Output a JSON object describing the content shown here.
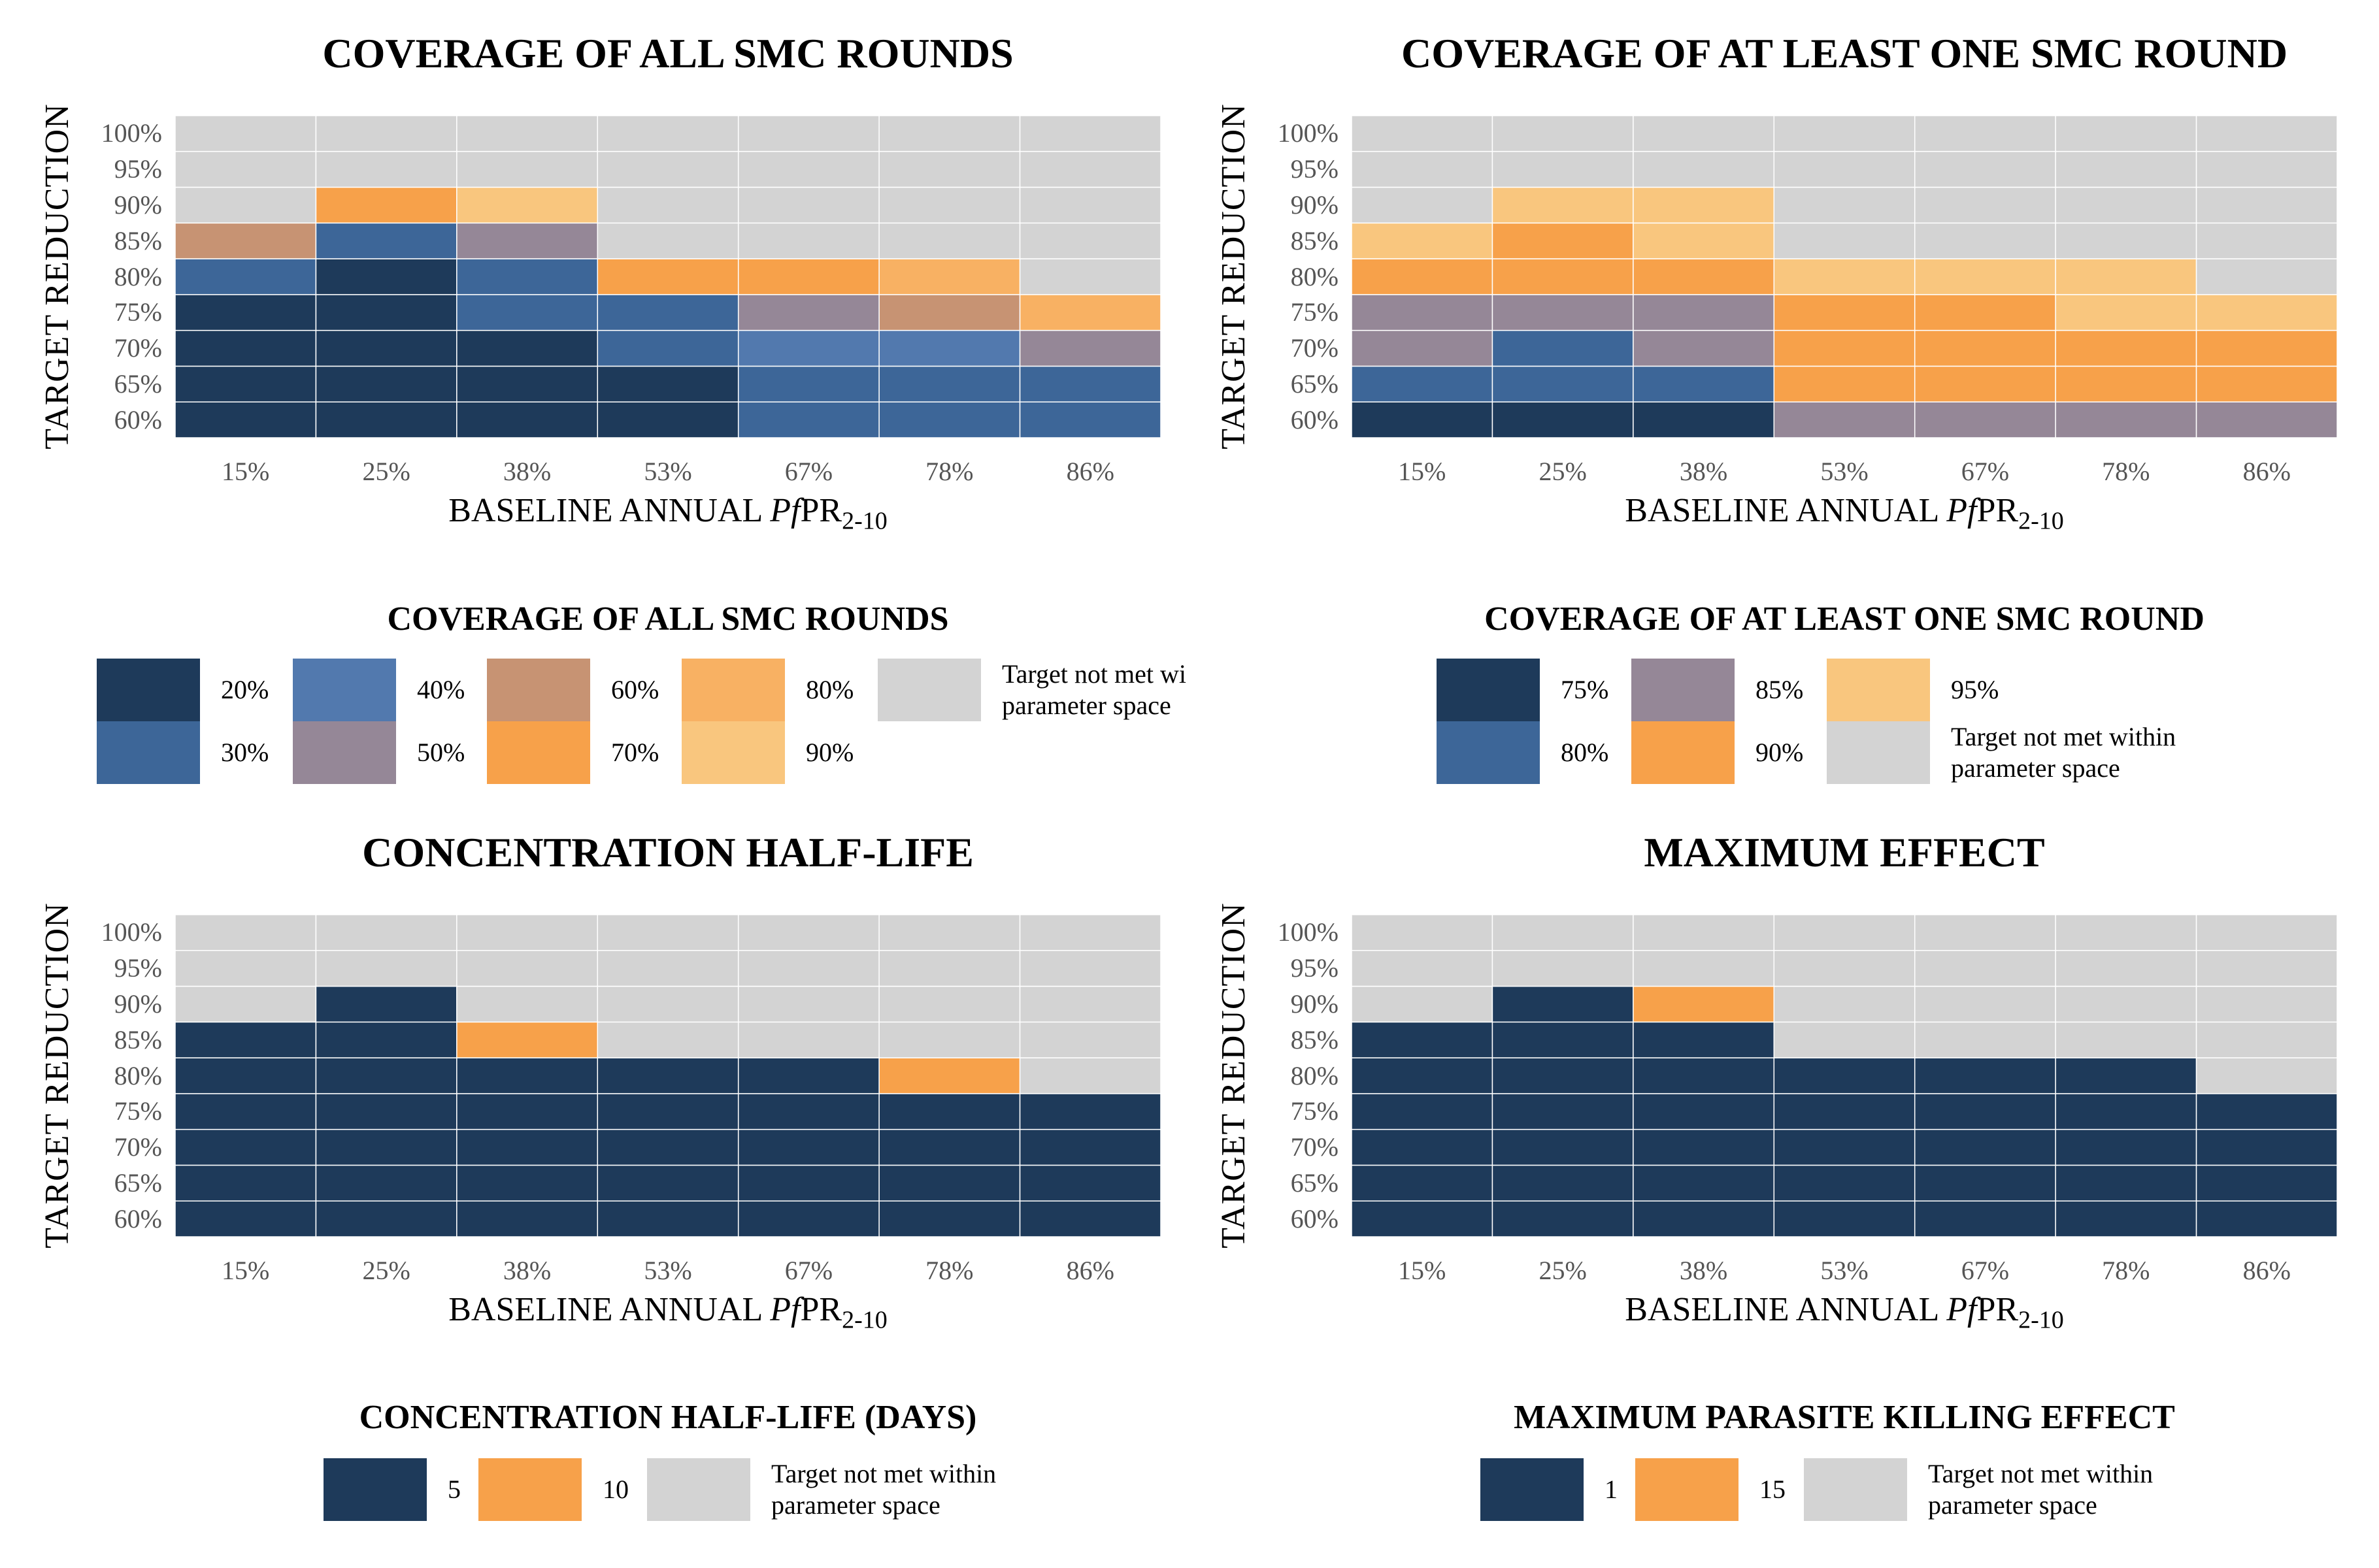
{
  "colors": {
    "c20": "#1e3a5a",
    "c30": "#3d6698",
    "c40": "#5279ae",
    "c50": "#958797",
    "c60": "#c79373",
    "c70": "#f7a14a",
    "c80": "#f8b163",
    "c90": "#f9c67e",
    "grey": "#d3d3d3"
  },
  "chart_data": [
    {
      "type": "heatmap",
      "title": "COVERAGE OF ALL SMC ROUNDS",
      "xlabel_main": "BASELINE ANNUAL ",
      "xlabel_italic": "Pf",
      "xlabel_rest": "PR",
      "xlabel_sub": "2-10",
      "ylabel": "TARGET  REDUCTION",
      "x_categories": [
        "15%",
        "25%",
        "38%",
        "53%",
        "67%",
        "78%",
        "86%"
      ],
      "y_categories": [
        "60%",
        "65%",
        "70%",
        "75%",
        "80%",
        "85%",
        "90%",
        "95%",
        "100%"
      ],
      "cells": [
        [
          "20%",
          "20%",
          "20%",
          "20%",
          "30%",
          "30%",
          "30%"
        ],
        [
          "20%",
          "20%",
          "20%",
          "20%",
          "30%",
          "30%",
          "30%"
        ],
        [
          "20%",
          "20%",
          "20%",
          "30%",
          "40%",
          "40%",
          "50%"
        ],
        [
          "20%",
          "20%",
          "30%",
          "30%",
          "50%",
          "60%",
          "80%"
        ],
        [
          "30%",
          "20%",
          "30%",
          "70%",
          "70%",
          "80%",
          "NM"
        ],
        [
          "60%",
          "30%",
          "50%",
          "NM",
          "NM",
          "NM",
          "NM"
        ],
        [
          "NM",
          "70%",
          "90%",
          "NM",
          "NM",
          "NM",
          "NM"
        ],
        [
          "NM",
          "NM",
          "NM",
          "NM",
          "NM",
          "NM",
          "NM"
        ],
        [
          "NM",
          "NM",
          "NM",
          "NM",
          "NM",
          "NM",
          "NM"
        ]
      ]
    },
    {
      "type": "heatmap",
      "title": "COVERAGE OF AT LEAST ONE SMC ROUND",
      "xlabel_main": "BASELINE ANNUAL ",
      "xlabel_italic": "Pf",
      "xlabel_rest": "PR",
      "xlabel_sub": "2-10",
      "ylabel": "TARGET  REDUCTION",
      "x_categories": [
        "15%",
        "25%",
        "38%",
        "53%",
        "67%",
        "78%",
        "86%"
      ],
      "y_categories": [
        "60%",
        "65%",
        "70%",
        "75%",
        "80%",
        "85%",
        "90%",
        "95%",
        "100%"
      ],
      "cells": [
        [
          "75%",
          "75%",
          "75%",
          "85%",
          "85%",
          "85%",
          "85%"
        ],
        [
          "80%",
          "80%",
          "80%",
          "90%",
          "90%",
          "90%",
          "90%"
        ],
        [
          "85%",
          "80%",
          "85%",
          "90%",
          "90%",
          "90%",
          "90%"
        ],
        [
          "85%",
          "85%",
          "85%",
          "90%",
          "90%",
          "95%",
          "95%"
        ],
        [
          "90%",
          "90%",
          "90%",
          "95%",
          "95%",
          "95%",
          "NM"
        ],
        [
          "95%",
          "90%",
          "95%",
          "NM",
          "NM",
          "NM",
          "NM"
        ],
        [
          "NM",
          "95%",
          "95%",
          "NM",
          "NM",
          "NM",
          "NM"
        ],
        [
          "NM",
          "NM",
          "NM",
          "NM",
          "NM",
          "NM",
          "NM"
        ],
        [
          "NM",
          "NM",
          "NM",
          "NM",
          "NM",
          "NM",
          "NM"
        ]
      ]
    },
    {
      "type": "heatmap",
      "title": "CONCENTRATION HALF-LIFE",
      "xlabel_main": "BASELINE ANNUAL ",
      "xlabel_italic": "Pf",
      "xlabel_rest": "PR",
      "xlabel_sub": "2-10",
      "ylabel": "TARGET  REDUCTION",
      "x_categories": [
        "15%",
        "25%",
        "38%",
        "53%",
        "67%",
        "78%",
        "86%"
      ],
      "y_categories": [
        "60%",
        "65%",
        "70%",
        "75%",
        "80%",
        "85%",
        "90%",
        "95%",
        "100%"
      ],
      "cells": [
        [
          "5",
          "5",
          "5",
          "5",
          "5",
          "5",
          "5"
        ],
        [
          "5",
          "5",
          "5",
          "5",
          "5",
          "5",
          "5"
        ],
        [
          "5",
          "5",
          "5",
          "5",
          "5",
          "5",
          "5"
        ],
        [
          "5",
          "5",
          "5",
          "5",
          "5",
          "5",
          "5"
        ],
        [
          "5",
          "5",
          "5",
          "5",
          "5",
          "10",
          "NM"
        ],
        [
          "5",
          "5",
          "10",
          "NM",
          "NM",
          "NM",
          "NM"
        ],
        [
          "NM",
          "5",
          "NM",
          "NM",
          "NM",
          "NM",
          "NM"
        ],
        [
          "NM",
          "NM",
          "NM",
          "NM",
          "NM",
          "NM",
          "NM"
        ],
        [
          "NM",
          "NM",
          "NM",
          "NM",
          "NM",
          "NM",
          "NM"
        ]
      ]
    },
    {
      "type": "heatmap",
      "title": "MAXIMUM EFFECT",
      "xlabel_main": "BASELINE ANNUAL ",
      "xlabel_italic": "Pf",
      "xlabel_rest": "PR",
      "xlabel_sub": "2-10",
      "ylabel": "TARGET  REDUCTION",
      "x_categories": [
        "15%",
        "25%",
        "38%",
        "53%",
        "67%",
        "78%",
        "86%"
      ],
      "y_categories": [
        "60%",
        "65%",
        "70%",
        "75%",
        "80%",
        "85%",
        "90%",
        "95%",
        "100%"
      ],
      "cells": [
        [
          "1",
          "1",
          "1",
          "1",
          "1",
          "1",
          "1"
        ],
        [
          "1",
          "1",
          "1",
          "1",
          "1",
          "1",
          "1"
        ],
        [
          "1",
          "1",
          "1",
          "1",
          "1",
          "1",
          "1"
        ],
        [
          "1",
          "1",
          "1",
          "1",
          "1",
          "1",
          "1"
        ],
        [
          "1",
          "1",
          "1",
          "1",
          "1",
          "1",
          "NM"
        ],
        [
          "1",
          "1",
          "1",
          "NM",
          "NM",
          "NM",
          "NM"
        ],
        [
          "NM",
          "1",
          "15",
          "NM",
          "NM",
          "NM",
          "NM"
        ],
        [
          "NM",
          "NM",
          "NM",
          "NM",
          "NM",
          "NM",
          "NM"
        ],
        [
          "NM",
          "NM",
          "NM",
          "NM",
          "NM",
          "NM",
          "NM"
        ]
      ]
    }
  ],
  "legends": [
    {
      "title": "COVERAGE  OF ALL  SMC  ROUNDS",
      "items": [
        {
          "key": "20%",
          "label": "20%",
          "color": "#1e3a5a"
        },
        {
          "key": "30%",
          "label": "30%",
          "color": "#3d6698"
        },
        {
          "key": "40%",
          "label": "40%",
          "color": "#5279ae"
        },
        {
          "key": "50%",
          "label": "50%",
          "color": "#958797"
        },
        {
          "key": "60%",
          "label": "60%",
          "color": "#c79373"
        },
        {
          "key": "70%",
          "label": "70%",
          "color": "#f7a14a"
        },
        {
          "key": "80%",
          "label": "80%",
          "color": "#f8b163"
        },
        {
          "key": "90%",
          "label": "90%",
          "color": "#f9c67e"
        },
        {
          "key": "NM",
          "label": "Target not met wi\nparameter space",
          "color": "#d3d3d3"
        }
      ]
    },
    {
      "title": "COVERAGE  OF AT  LEAST  ONE  SMC  ROUND",
      "items": [
        {
          "key": "75%",
          "label": "75%",
          "color": "#1e3a5a"
        },
        {
          "key": "80%",
          "label": "80%",
          "color": "#3d6698"
        },
        {
          "key": "85%",
          "label": "85%",
          "color": "#958797"
        },
        {
          "key": "90%",
          "label": "90%",
          "color": "#f7a14a"
        },
        {
          "key": "95%",
          "label": "95%",
          "color": "#f9c67e"
        },
        {
          "key": "NM",
          "label": "Target not met within\nparameter space",
          "color": "#d3d3d3"
        }
      ]
    },
    {
      "title": "CONCENTRATION HALF-LIFE  (DAYS)",
      "items": [
        {
          "key": "5",
          "label": "5",
          "color": "#1e3a5a"
        },
        {
          "key": "10",
          "label": "10",
          "color": "#f7a14a"
        },
        {
          "key": "NM",
          "label": "Target not met within\nparameter space",
          "color": "#d3d3d3"
        }
      ]
    },
    {
      "title": "MAXIMUM  PARASITE KILLING  EFFECT",
      "items": [
        {
          "key": "1",
          "label": "1",
          "color": "#1e3a5a"
        },
        {
          "key": "15",
          "label": "15",
          "color": "#f7a14a"
        },
        {
          "key": "NM",
          "label": "Target not met within\nparameter space",
          "color": "#d3d3d3"
        }
      ]
    }
  ]
}
